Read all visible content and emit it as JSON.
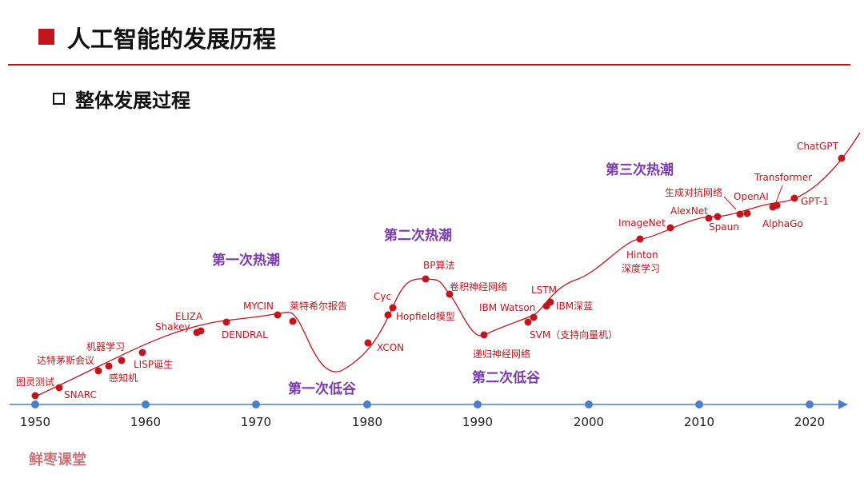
{
  "header": {
    "title": "人工智能的发展历程"
  },
  "section": {
    "subtitle": "整体发展过程"
  },
  "footer": {
    "brand": "鲜枣课堂"
  },
  "colors": {
    "accent": "#c0161e",
    "axis": "#4a7fcc",
    "phase": "#7a3bb0"
  },
  "timeline": {
    "years": [
      "1950",
      "1960",
      "1970",
      "1980",
      "1990",
      "2000",
      "2010",
      "2020"
    ],
    "phases": [
      {
        "label": "第一次热潮"
      },
      {
        "label": "第一次低谷"
      },
      {
        "label": "第二次热潮"
      },
      {
        "label": "第二次低谷"
      },
      {
        "label": "第三次热潮"
      }
    ],
    "events": [
      {
        "label": "图灵测试"
      },
      {
        "label": "SNARC"
      },
      {
        "label": "达特茅斯会议"
      },
      {
        "label": "机器学习"
      },
      {
        "label": "感知机"
      },
      {
        "label": "LISP诞生"
      },
      {
        "label": "ELIZA"
      },
      {
        "label": "Shakey"
      },
      {
        "label": "DENDRAL"
      },
      {
        "label": "MYCIN"
      },
      {
        "label": "莱特希尔报告"
      },
      {
        "label": "XCON"
      },
      {
        "label": "Cyc"
      },
      {
        "label": "Hopfield模型"
      },
      {
        "label": "BP算法"
      },
      {
        "label": "卷积神经网络"
      },
      {
        "label": "递归神经网络"
      },
      {
        "label": "SVM（支持向量机）"
      },
      {
        "label": "IBM Watson"
      },
      {
        "label": "LSTM"
      },
      {
        "label": "IBM深蓝"
      },
      {
        "label": "Hinton"
      },
      {
        "label": "深度学习"
      },
      {
        "label": "ImageNet"
      },
      {
        "label": "AlexNet"
      },
      {
        "label": "生成对抗网络"
      },
      {
        "label": "Spaun"
      },
      {
        "label": "OpenAI"
      },
      {
        "label": "AlphaGo"
      },
      {
        "label": "Transformer"
      },
      {
        "label": "GPT-1"
      },
      {
        "label": "ChatGPT"
      }
    ]
  }
}
